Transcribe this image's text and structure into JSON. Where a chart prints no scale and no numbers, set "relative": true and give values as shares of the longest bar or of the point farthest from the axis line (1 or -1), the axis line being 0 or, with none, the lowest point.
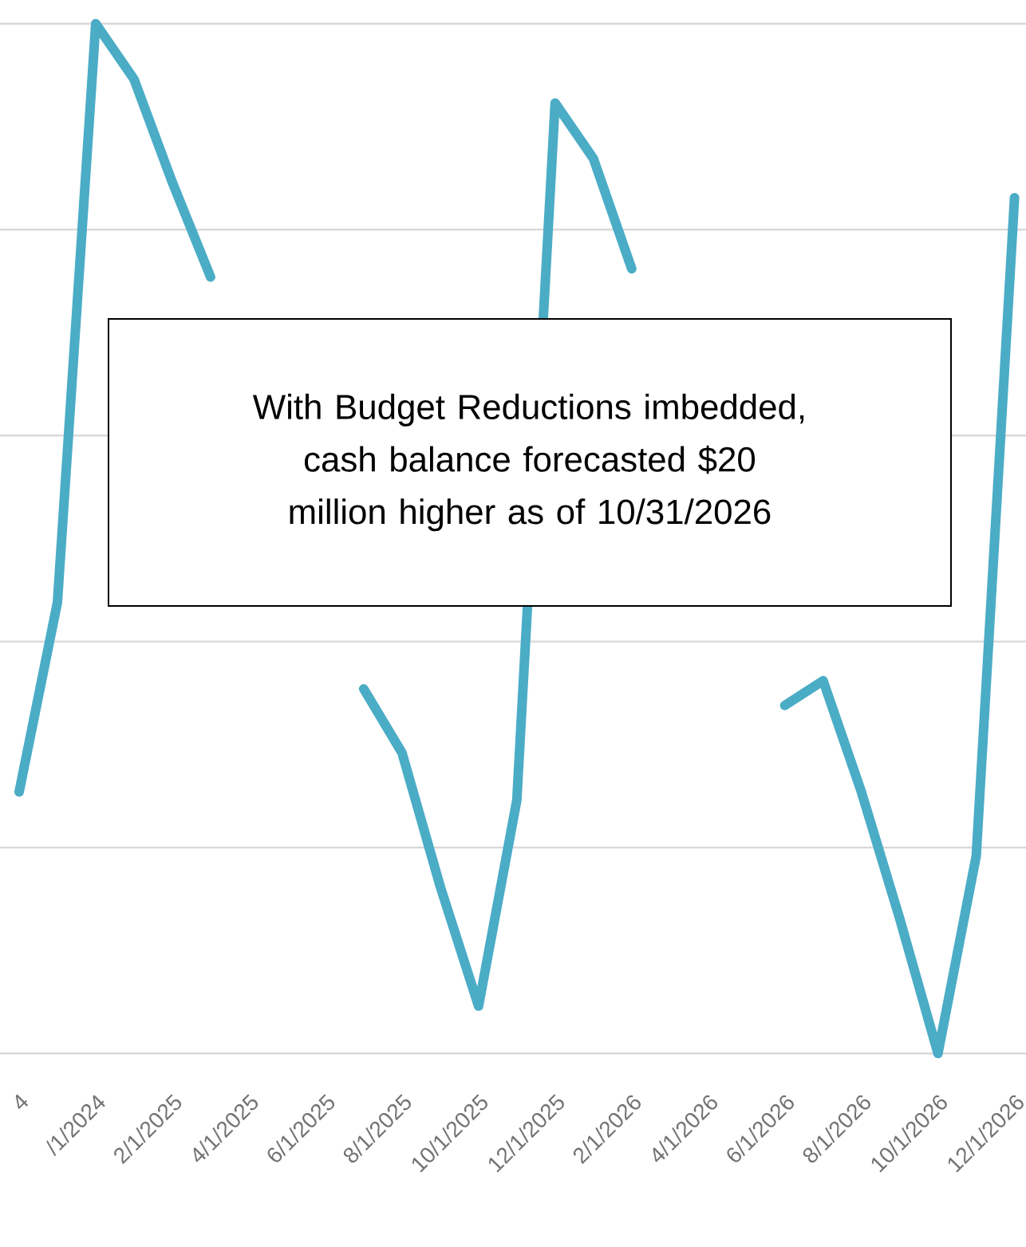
{
  "chart_data": {
    "type": "line",
    "relative": true,
    "grid": "y",
    "color": "#4bacc6",
    "categories": [
      "4",
      null,
      "/1/2024",
      null,
      "2/1/2025",
      null,
      "4/1/2025",
      null,
      "6/1/2025",
      null,
      "8/1/2025",
      null,
      "10/1/2025",
      null,
      "12/1/2025",
      null,
      "2/1/2026",
      null,
      "4/1/2026",
      null,
      "6/1/2026",
      null,
      "8/1/2026",
      null,
      "10/1/2026",
      null,
      "12/1/2026"
    ],
    "values": [
      0.254,
      0.438,
      1,
      0.946,
      0.846,
      0.754,
      null,
      null,
      null,
      0.354,
      0.292,
      0.162,
      0.046,
      0.246,
      0.923,
      0.869,
      0.762,
      null,
      null,
      null,
      0.338,
      0.362,
      0.254,
      0.131,
      0,
      0.192,
      0.831
    ],
    "annotations": [
      "With Budget Reductions imbedded, cash balance forecasted $20 million higher as of 10/31/2026"
    ]
  }
}
